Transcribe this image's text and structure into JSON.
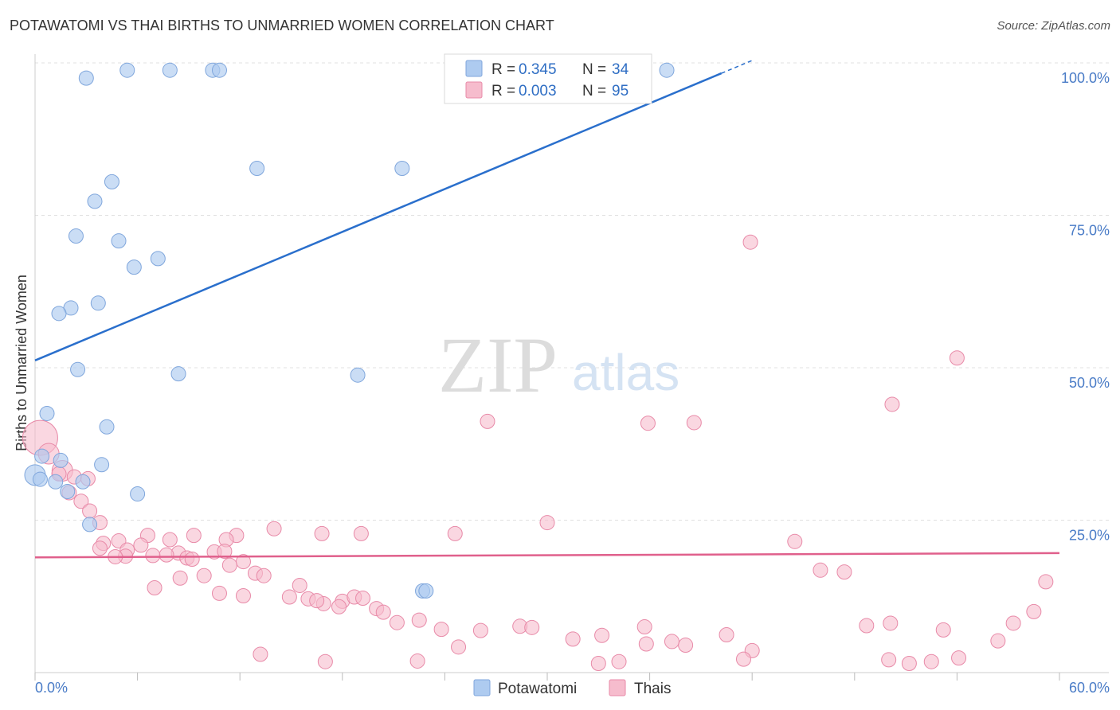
{
  "title": "POTAWATOMI VS THAI BIRTHS TO UNMARRIED WOMEN CORRELATION CHART",
  "source": "Source: ZipAtlas.com",
  "watermark": {
    "zip": "ZIP",
    "atlas": "atlas"
  },
  "colors": {
    "potawatomi_fill": "#aecbf0",
    "potawatomi_stroke": "#7fa6dc",
    "potawatomi_line": "#2a6fcc",
    "thais_fill": "#f6bccd",
    "thais_stroke": "#e88aa8",
    "thais_line": "#e0608c",
    "grid": "#e0e0e0",
    "axis_text": "#4a7cc7"
  },
  "legend": {
    "rows": [
      {
        "r_label": "R = ",
        "r_value": "0.345",
        "n_label": "N = ",
        "n_value": "34"
      },
      {
        "r_label": "R = ",
        "r_value": "0.003",
        "n_label": "N = ",
        "n_value": "95"
      }
    ]
  },
  "bottom_legend": {
    "items": [
      "Potawatomi",
      "Thais"
    ]
  },
  "chart_data": {
    "type": "scatter",
    "title": "POTAWATOMI VS THAI BIRTHS TO UNMARRIED WOMEN CORRELATION CHART",
    "xlabel": "",
    "ylabel": "Births to Unmarried Women",
    "xlim": [
      0,
      60
    ],
    "ylim": [
      0,
      100
    ],
    "x_tick_labels": {
      "0": "0.0%",
      "60": "60.0%"
    },
    "y_tick_labels": {
      "25": "25.0%",
      "50": "50.0%",
      "75": "75.0%",
      "100": "100.0%"
    },
    "grid": true,
    "series": [
      {
        "name": "Potawatomi",
        "R": 0.345,
        "N": 34,
        "trend": {
          "x0": 0,
          "y0": 51.2,
          "x1": 42,
          "y1": 100.4
        },
        "points": [
          [
            3.0,
            97.5
          ],
          [
            5.4,
            98.8
          ],
          [
            7.9,
            98.8
          ],
          [
            10.4,
            98.8
          ],
          [
            10.8,
            98.8
          ],
          [
            37.0,
            98.8
          ],
          [
            13.0,
            82.7
          ],
          [
            21.5,
            82.7
          ],
          [
            4.5,
            80.5
          ],
          [
            3.5,
            77.3
          ],
          [
            2.4,
            71.6
          ],
          [
            4.9,
            70.8
          ],
          [
            7.2,
            67.9
          ],
          [
            5.8,
            66.5
          ],
          [
            3.7,
            60.6
          ],
          [
            2.1,
            59.8
          ],
          [
            1.4,
            58.9
          ],
          [
            2.5,
            49.7
          ],
          [
            8.4,
            49.0
          ],
          [
            18.9,
            48.8
          ],
          [
            0.7,
            42.5
          ],
          [
            4.2,
            40.3
          ],
          [
            0.4,
            35.5
          ],
          [
            1.5,
            34.8
          ],
          [
            3.9,
            34.1
          ],
          [
            0.0,
            32.4
          ],
          [
            0.3,
            31.7
          ],
          [
            1.2,
            31.3
          ],
          [
            2.8,
            31.3
          ],
          [
            1.9,
            29.7
          ],
          [
            6.0,
            29.3
          ],
          [
            3.2,
            24.3
          ],
          [
            22.7,
            13.4
          ],
          [
            22.9,
            13.4
          ]
        ]
      },
      {
        "name": "Thais",
        "R": 0.003,
        "N": 95,
        "trend": {
          "x0": 0,
          "y0": 18.9,
          "x1": 60,
          "y1": 19.6
        },
        "points": [
          [
            0.3,
            38.5
          ],
          [
            0.8,
            35.9
          ],
          [
            1.6,
            33.1
          ],
          [
            2.3,
            32.1
          ],
          [
            1.4,
            32.6
          ],
          [
            3.1,
            31.8
          ],
          [
            2.0,
            29.5
          ],
          [
            2.7,
            28.1
          ],
          [
            3.2,
            26.5
          ],
          [
            3.8,
            24.6
          ],
          [
            6.6,
            22.5
          ],
          [
            9.3,
            22.5
          ],
          [
            11.8,
            22.5
          ],
          [
            11.2,
            21.8
          ],
          [
            7.9,
            21.8
          ],
          [
            4.9,
            21.6
          ],
          [
            4.0,
            21.2
          ],
          [
            6.2,
            20.9
          ],
          [
            3.8,
            20.4
          ],
          [
            5.4,
            20.1
          ],
          [
            10.5,
            19.8
          ],
          [
            8.4,
            19.6
          ],
          [
            7.7,
            19.3
          ],
          [
            6.9,
            19.2
          ],
          [
            5.3,
            19.1
          ],
          [
            8.9,
            18.8
          ],
          [
            9.2,
            18.6
          ],
          [
            4.7,
            19.0
          ],
          [
            11.1,
            19.9
          ],
          [
            14.0,
            23.6
          ],
          [
            16.8,
            22.8
          ],
          [
            19.1,
            22.8
          ],
          [
            24.6,
            22.8
          ],
          [
            30.0,
            24.6
          ],
          [
            12.2,
            18.2
          ],
          [
            11.4,
            17.6
          ],
          [
            12.9,
            16.3
          ],
          [
            13.4,
            15.9
          ],
          [
            15.5,
            14.3
          ],
          [
            8.5,
            15.5
          ],
          [
            9.9,
            15.9
          ],
          [
            7.0,
            13.9
          ],
          [
            10.8,
            13.0
          ],
          [
            12.2,
            12.6
          ],
          [
            14.9,
            12.4
          ],
          [
            16.0,
            12.1
          ],
          [
            16.9,
            11.3
          ],
          [
            16.5,
            11.8
          ],
          [
            18.0,
            11.7
          ],
          [
            18.7,
            12.4
          ],
          [
            19.2,
            12.2
          ],
          [
            17.8,
            10.8
          ],
          [
            20.0,
            10.5
          ],
          [
            20.4,
            9.9
          ],
          [
            21.2,
            8.2
          ],
          [
            22.5,
            8.6
          ],
          [
            23.8,
            7.1
          ],
          [
            26.1,
            6.9
          ],
          [
            28.4,
            7.6
          ],
          [
            29.1,
            7.4
          ],
          [
            31.5,
            5.5
          ],
          [
            33.2,
            6.1
          ],
          [
            35.7,
            7.5
          ],
          [
            38.1,
            4.5
          ],
          [
            40.5,
            6.2
          ],
          [
            42.0,
            3.6
          ],
          [
            35.8,
            4.7
          ],
          [
            37.3,
            5.1
          ],
          [
            34.2,
            1.8
          ],
          [
            22.4,
            1.9
          ],
          [
            13.2,
            3.0
          ],
          [
            17.0,
            1.8
          ],
          [
            33.0,
            1.5
          ],
          [
            24.8,
            4.2
          ],
          [
            41.5,
            2.2
          ],
          [
            44.5,
            21.5
          ],
          [
            46.0,
            16.8
          ],
          [
            47.4,
            16.5
          ],
          [
            48.7,
            7.7
          ],
          [
            50.1,
            8.1
          ],
          [
            51.2,
            1.5
          ],
          [
            50.0,
            2.1
          ],
          [
            52.5,
            1.8
          ],
          [
            54.1,
            2.4
          ],
          [
            53.2,
            7.0
          ],
          [
            56.4,
            5.2
          ],
          [
            57.3,
            8.1
          ],
          [
            58.5,
            10.0
          ],
          [
            59.2,
            14.9
          ],
          [
            41.9,
            70.6
          ],
          [
            54.0,
            51.6
          ],
          [
            50.2,
            44.0
          ],
          [
            26.5,
            41.2
          ],
          [
            38.6,
            41.0
          ],
          [
            35.9,
            40.9
          ]
        ]
      }
    ]
  }
}
